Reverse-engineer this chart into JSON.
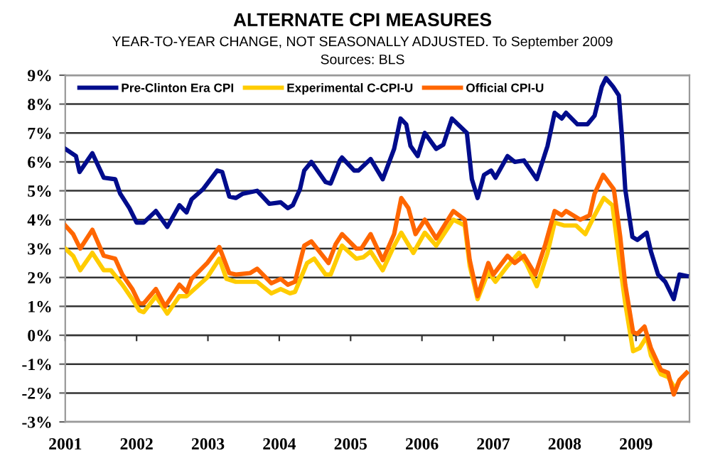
{
  "chart_data": {
    "type": "line",
    "title": "ALTERNATE CPI MEASURES",
    "subtitle": "YEAR-TO-YEAR CHANGE, NOT SEASONALLY ADJUSTED. To September 2009",
    "annotations": [
      "Sources: BLS"
    ],
    "xlim": [
      2001,
      2009.75
    ],
    "xticks": [
      2001,
      2002,
      2003,
      2004,
      2005,
      2006,
      2007,
      2008,
      2009
    ],
    "ylim": [
      -3,
      9
    ],
    "yticks": [
      {
        "value": -3,
        "label": "-3%"
      },
      {
        "value": -2,
        "label": "-2%"
      },
      {
        "value": -1,
        "label": "-1%"
      },
      {
        "value": 0,
        "label": "0%"
      },
      {
        "value": 1,
        "label": "1%"
      },
      {
        "value": 2,
        "label": "2%"
      },
      {
        "value": 3,
        "label": "3%"
      },
      {
        "value": 4,
        "label": "4%"
      },
      {
        "value": 5,
        "label": "5%"
      },
      {
        "value": 6,
        "label": "6%"
      },
      {
        "value": 7,
        "label": "7%"
      },
      {
        "value": 8,
        "label": "8%"
      },
      {
        "value": 9,
        "label": "9%"
      }
    ],
    "grid": "y",
    "legend": "top",
    "marker": "none",
    "line_style": "solid",
    "series": [
      {
        "name": "Pre-Clinton Era CPI",
        "color": "#000c8c",
        "x": [
          2001.0,
          2001.15,
          2001.2,
          2001.38,
          2001.54,
          2001.7,
          2001.77,
          2001.9,
          2002.0,
          2002.1,
          2002.27,
          2002.43,
          2002.6,
          2002.7,
          2002.77,
          2002.93,
          2003.13,
          2003.2,
          2003.3,
          2003.39,
          2003.49,
          2003.69,
          2003.86,
          2004.02,
          2004.12,
          2004.19,
          2004.29,
          2004.35,
          2004.45,
          2004.65,
          2004.72,
          2004.85,
          2004.88,
          2005.05,
          2005.11,
          2005.28,
          2005.45,
          2005.61,
          2005.7,
          2005.78,
          2005.84,
          2005.94,
          2006.04,
          2006.2,
          2006.3,
          2006.42,
          2006.63,
          2006.7,
          2006.78,
          2006.87,
          2006.97,
          2007.03,
          2007.2,
          2007.3,
          2007.43,
          2007.61,
          2007.76,
          2007.86,
          2007.96,
          2008.02,
          2008.18,
          2008.32,
          2008.42,
          2008.52,
          2008.58,
          2008.68,
          2008.76,
          2008.8,
          2008.85,
          2008.95,
          2009.02,
          2009.15,
          2009.21,
          2009.31,
          2009.41,
          2009.53,
          2009.61,
          2009.71
        ],
        "values": [
          6.45,
          6.2,
          5.65,
          6.3,
          5.45,
          5.4,
          4.9,
          4.4,
          3.9,
          3.9,
          4.3,
          3.75,
          4.5,
          4.25,
          4.7,
          5.05,
          5.7,
          5.65,
          4.8,
          4.75,
          4.9,
          5.0,
          4.55,
          4.6,
          4.4,
          4.5,
          5.05,
          5.7,
          6.0,
          5.3,
          5.25,
          6.05,
          6.15,
          5.7,
          5.7,
          6.1,
          5.4,
          6.45,
          7.5,
          7.3,
          6.55,
          6.2,
          7.0,
          6.45,
          6.6,
          7.5,
          7.0,
          5.4,
          4.75,
          5.55,
          5.7,
          5.45,
          6.2,
          6.0,
          6.05,
          5.4,
          6.55,
          7.7,
          7.5,
          7.7,
          7.3,
          7.3,
          7.6,
          8.6,
          8.9,
          8.6,
          8.3,
          7.0,
          5.05,
          3.4,
          3.3,
          3.55,
          2.9,
          2.1,
          1.85,
          1.25,
          2.1,
          2.05
        ]
      },
      {
        "name": "Experimental C-CPI-U",
        "color": "#ffcc00",
        "x": [
          2001.0,
          2001.11,
          2001.21,
          2001.38,
          2001.54,
          2001.64,
          2001.8,
          2001.94,
          2002.04,
          2002.1,
          2002.27,
          2002.43,
          2002.6,
          2002.7,
          2002.99,
          2003.16,
          2003.26,
          2003.39,
          2003.69,
          2003.89,
          2004.02,
          2004.15,
          2004.22,
          2004.39,
          2004.49,
          2004.65,
          2004.72,
          2004.88,
          2005.08,
          2005.18,
          2005.28,
          2005.45,
          2005.61,
          2005.71,
          2005.88,
          2006.04,
          2006.2,
          2006.44,
          2006.6,
          2006.67,
          2006.78,
          2006.93,
          2007.03,
          2007.2,
          2007.36,
          2007.46,
          2007.61,
          2007.76,
          2007.86,
          2007.99,
          2008.16,
          2008.29,
          2008.42,
          2008.55,
          2008.67,
          2008.76,
          2008.85,
          2008.96,
          2009.05,
          2009.15,
          2009.21,
          2009.35,
          2009.45,
          2009.55,
          2009.61,
          2009.71
        ],
        "values": [
          3.0,
          2.75,
          2.25,
          2.85,
          2.25,
          2.25,
          1.75,
          1.25,
          0.85,
          0.8,
          1.35,
          0.75,
          1.35,
          1.35,
          2.0,
          2.65,
          1.95,
          1.85,
          1.85,
          1.45,
          1.6,
          1.45,
          1.5,
          2.5,
          2.65,
          2.1,
          2.1,
          3.1,
          2.65,
          2.7,
          2.9,
          2.25,
          3.1,
          3.55,
          2.85,
          3.55,
          3.1,
          4.0,
          3.8,
          2.4,
          1.25,
          2.2,
          1.85,
          2.4,
          2.85,
          2.5,
          1.7,
          2.85,
          3.9,
          3.8,
          3.8,
          3.5,
          4.15,
          4.75,
          4.5,
          2.75,
          1.1,
          -0.55,
          -0.45,
          -0.05,
          -0.7,
          -1.35,
          -1.45,
          -1.85,
          -1.55,
          -1.3
        ]
      },
      {
        "name": "Official CPI-U",
        "color": "#ff6600",
        "x": [
          2001.0,
          2001.11,
          2001.21,
          2001.38,
          2001.54,
          2001.7,
          2001.8,
          2001.94,
          2002.04,
          2002.1,
          2002.27,
          2002.4,
          2002.6,
          2002.7,
          2002.77,
          2002.99,
          2003.16,
          2003.3,
          2003.39,
          2003.59,
          2003.69,
          2003.89,
          2004.02,
          2004.12,
          2004.22,
          2004.35,
          2004.45,
          2004.69,
          2004.79,
          2004.88,
          2005.08,
          2005.15,
          2005.28,
          2005.45,
          2005.61,
          2005.71,
          2005.81,
          2005.91,
          2006.04,
          2006.2,
          2006.44,
          2006.6,
          2006.67,
          2006.78,
          2006.93,
          2007.0,
          2007.2,
          2007.3,
          2007.43,
          2007.59,
          2007.73,
          2007.86,
          2007.96,
          2008.02,
          2008.22,
          2008.35,
          2008.42,
          2008.54,
          2008.69,
          2008.78,
          2008.85,
          2008.96,
          2009.02,
          2009.12,
          2009.21,
          2009.35,
          2009.45,
          2009.53,
          2009.61,
          2009.71
        ],
        "values": [
          3.8,
          3.5,
          3.0,
          3.65,
          2.75,
          2.65,
          2.1,
          1.6,
          1.1,
          1.1,
          1.6,
          1.0,
          1.75,
          1.5,
          1.95,
          2.5,
          3.05,
          2.15,
          2.1,
          2.15,
          2.3,
          1.8,
          1.95,
          1.75,
          1.85,
          3.1,
          3.25,
          2.5,
          3.15,
          3.5,
          3.0,
          3.0,
          3.5,
          2.6,
          3.5,
          4.75,
          4.4,
          3.5,
          4.0,
          3.35,
          4.3,
          4.0,
          2.6,
          1.35,
          2.5,
          2.1,
          2.75,
          2.5,
          2.75,
          2.1,
          3.15,
          4.3,
          4.15,
          4.3,
          4.0,
          4.15,
          4.9,
          5.55,
          5.05,
          3.4,
          1.75,
          0.1,
          0.05,
          0.3,
          -0.45,
          -1.2,
          -1.3,
          -2.05,
          -1.55,
          -1.3
        ]
      }
    ]
  }
}
